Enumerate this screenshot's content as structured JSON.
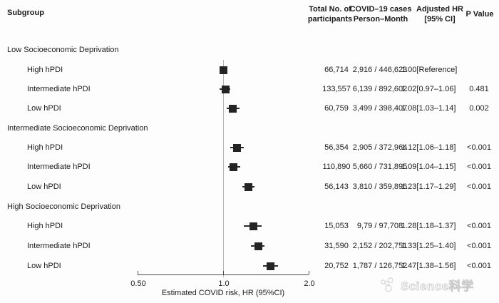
{
  "header": {
    "subgroup": "Subgroup",
    "participants_line1": "Total No. of",
    "participants_line2": "participants",
    "cases_line1": "COVID–19 cases",
    "cases_line2": "Person–Month",
    "hr_line1": "Adjusted HR",
    "hr_line2": "[95% CI]",
    "p_value": "P Value"
  },
  "chart_data": {
    "type": "forest",
    "x_scale": "log",
    "x_axis": {
      "label": "Estimated COVID risk, HR (95%CI)",
      "range": [
        0.5,
        2.0
      ],
      "reference_value": 1.0,
      "ticks": [
        {
          "value": 0.5,
          "label": "0.50"
        },
        {
          "value": 1.0,
          "label": "1.0"
        },
        {
          "value": 2.0,
          "label": "2.0"
        }
      ]
    },
    "rows": [
      {
        "type": "group",
        "label": "Low Socioeconomic Deprivation"
      },
      {
        "type": "item",
        "label": "High hPDI",
        "participants": "66,714",
        "cases": "2,916 / 446,623",
        "hr": 1.0,
        "ci": null,
        "hr_text": "1.00[Reference]",
        "p_value": ""
      },
      {
        "type": "item",
        "label": "Intermediate hPDI",
        "participants": "133,557",
        "cases": "6,139 / 892,602",
        "hr": 1.02,
        "ci": [
          0.97,
          1.06
        ],
        "hr_text": "1.02[0.97–1.06]",
        "p_value": "0.481"
      },
      {
        "type": "item",
        "label": "Low hPDI",
        "participants": "60,759",
        "cases": "3,499 / 398,407",
        "hr": 1.08,
        "ci": [
          1.03,
          1.14
        ],
        "hr_text": "1.08[1.03–1.14]",
        "p_value": "0.002"
      },
      {
        "type": "group",
        "label": "Intermediate Socioeconomic Deprivation"
      },
      {
        "type": "item",
        "label": "High hPDI",
        "participants": "56,354",
        "cases": "2,905 / 372,964",
        "hr": 1.12,
        "ci": [
          1.06,
          1.18
        ],
        "hr_text": "1.12[1.06–1.18]",
        "p_value": "<0.001"
      },
      {
        "type": "item",
        "label": "Intermediate hPDI",
        "participants": "110,890",
        "cases": "5,660 / 731,895",
        "hr": 1.09,
        "ci": [
          1.04,
          1.15
        ],
        "hr_text": "1.09[1.04–1.15]",
        "p_value": "<0.001"
      },
      {
        "type": "item",
        "label": "Low hPDI",
        "participants": "56,143",
        "cases": "3,810 / 359,896",
        "hr": 1.23,
        "ci": [
          1.17,
          1.29
        ],
        "hr_text": "1.23[1.17–1.29]",
        "p_value": "<0.001"
      },
      {
        "type": "group",
        "label": "High Socioeconomic Deprivation"
      },
      {
        "type": "item",
        "label": "High hPDI",
        "participants": "15,053",
        "cases": "9,79 / 97,708",
        "hr": 1.28,
        "ci": [
          1.18,
          1.37
        ],
        "hr_text": "1.28[1.18–1.37]",
        "p_value": "<0.001"
      },
      {
        "type": "item",
        "label": "Intermediate hPDI",
        "participants": "31,590",
        "cases": "2,152 / 202,751",
        "hr": 1.33,
        "ci": [
          1.25,
          1.4
        ],
        "hr_text": "1.33[1.25–1.40]",
        "p_value": "<0.001"
      },
      {
        "type": "item",
        "label": "Low hPDI",
        "participants": "20,752",
        "cases": "1,787 / 126,752",
        "hr": 1.47,
        "ci": [
          1.38,
          1.56
        ],
        "hr_text": "1.47[1.38–1.56]",
        "p_value": "<0.001"
      }
    ]
  },
  "watermark": {
    "text": "Science科学"
  },
  "colors": {
    "marker": "#242424",
    "reference_line": "#b3b3b3",
    "axis": "#4a4a4a",
    "text": "#1c1c1c",
    "watermark": "#d5d5d5"
  }
}
